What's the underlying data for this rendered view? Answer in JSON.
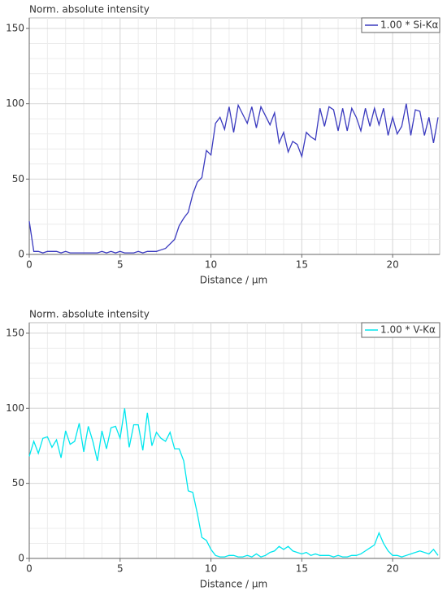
{
  "chart_data": [
    {
      "type": "line",
      "title": "Norm. absolute intensity",
      "x_label": "Distance / µm",
      "xlim": [
        0,
        22.5
      ],
      "xticks": [
        0,
        5,
        10,
        15,
        20
      ],
      "ylim": [
        0,
        157
      ],
      "yticks": [
        0,
        50,
        100,
        150
      ],
      "grid": true,
      "legend": "upper right",
      "x": [
        0,
        0.25,
        0.5,
        0.75,
        1,
        1.25,
        1.5,
        1.75,
        2,
        2.25,
        2.5,
        2.75,
        3,
        3.25,
        3.5,
        3.75,
        4,
        4.25,
        4.5,
        4.75,
        5,
        5.25,
        5.5,
        5.75,
        6,
        6.25,
        6.5,
        6.75,
        7,
        7.25,
        7.5,
        7.75,
        8,
        8.25,
        8.5,
        8.75,
        9,
        9.25,
        9.5,
        9.75,
        10,
        10.25,
        10.5,
        10.75,
        11,
        11.25,
        11.5,
        11.75,
        12,
        12.25,
        12.5,
        12.75,
        13,
        13.25,
        13.5,
        13.75,
        14,
        14.25,
        14.5,
        14.75,
        15,
        15.25,
        15.5,
        15.75,
        16,
        16.25,
        16.5,
        16.75,
        17,
        17.25,
        17.5,
        17.75,
        18,
        18.25,
        18.5,
        18.75,
        19,
        19.25,
        19.5,
        19.75,
        20,
        20.25,
        20.5,
        20.75,
        21,
        21.25,
        21.5,
        21.75,
        22,
        22.25,
        22.5
      ],
      "series": [
        {
          "name": "1.00 * Si-Kα",
          "color": "#3a3abf",
          "values": [
            22,
            2,
            2,
            1,
            2,
            2,
            2,
            1,
            2,
            1,
            1,
            1,
            1,
            1,
            1,
            1,
            2,
            1,
            2,
            1,
            2,
            1,
            1,
            1,
            2,
            1,
            2,
            2,
            2,
            3,
            4,
            7,
            10,
            19,
            24,
            28,
            40,
            48,
            51,
            69,
            66,
            87,
            91,
            83,
            98,
            81,
            99,
            93,
            87,
            98,
            84,
            98,
            92,
            86,
            94,
            74,
            81,
            68,
            75,
            73,
            65,
            81,
            78,
            76,
            97,
            85,
            98,
            96,
            82,
            97,
            82,
            97,
            91,
            82,
            97,
            85,
            97,
            86,
            97,
            79,
            91,
            80,
            85,
            100,
            79,
            96,
            95,
            79,
            91,
            74,
            91
          ]
        }
      ]
    },
    {
      "type": "line",
      "title": "Norm. absolute intensity",
      "x_label": "Distance / µm",
      "xlim": [
        0,
        22.5
      ],
      "xticks": [
        0,
        5,
        10,
        15,
        20
      ],
      "ylim": [
        0,
        157
      ],
      "yticks": [
        0,
        50,
        100,
        150
      ],
      "grid": true,
      "legend": "upper right",
      "x": [
        0,
        0.25,
        0.5,
        0.75,
        1,
        1.25,
        1.5,
        1.75,
        2,
        2.25,
        2.5,
        2.75,
        3,
        3.25,
        3.5,
        3.75,
        4,
        4.25,
        4.5,
        4.75,
        5,
        5.25,
        5.5,
        5.75,
        6,
        6.25,
        6.5,
        6.75,
        7,
        7.25,
        7.5,
        7.75,
        8,
        8.25,
        8.5,
        8.75,
        9,
        9.25,
        9.5,
        9.75,
        10,
        10.25,
        10.5,
        10.75,
        11,
        11.25,
        11.5,
        11.75,
        12,
        12.25,
        12.5,
        12.75,
        13,
        13.25,
        13.5,
        13.75,
        14,
        14.25,
        14.5,
        14.75,
        15,
        15.25,
        15.5,
        15.75,
        16,
        16.25,
        16.5,
        16.75,
        17,
        17.25,
        17.5,
        17.75,
        18,
        18.25,
        18.5,
        18.75,
        19,
        19.25,
        19.5,
        19.75,
        20,
        20.25,
        20.5,
        20.75,
        21,
        21.25,
        21.5,
        21.75,
        22,
        22.25,
        22.5
      ],
      "series": [
        {
          "name": "1.00 * V-Kα",
          "color": "#00e6ee",
          "values": [
            68,
            78,
            70,
            80,
            81,
            74,
            79,
            67,
            85,
            76,
            78,
            90,
            71,
            88,
            78,
            65,
            85,
            73,
            87,
            88,
            80,
            100,
            74,
            89,
            89,
            72,
            97,
            75,
            84,
            80,
            78,
            84,
            73,
            73,
            65,
            45,
            44,
            30,
            14,
            12,
            6,
            2,
            1,
            1,
            2,
            2,
            1,
            1,
            2,
            1,
            3,
            1,
            2,
            4,
            5,
            8,
            6,
            8,
            5,
            4,
            3,
            4,
            2,
            3,
            2,
            2,
            2,
            1,
            2,
            1,
            1,
            2,
            2,
            3,
            5,
            7,
            9,
            17,
            10,
            5,
            2,
            2,
            1,
            2,
            3,
            4,
            5,
            4,
            3,
            6,
            2
          ]
        }
      ]
    }
  ]
}
